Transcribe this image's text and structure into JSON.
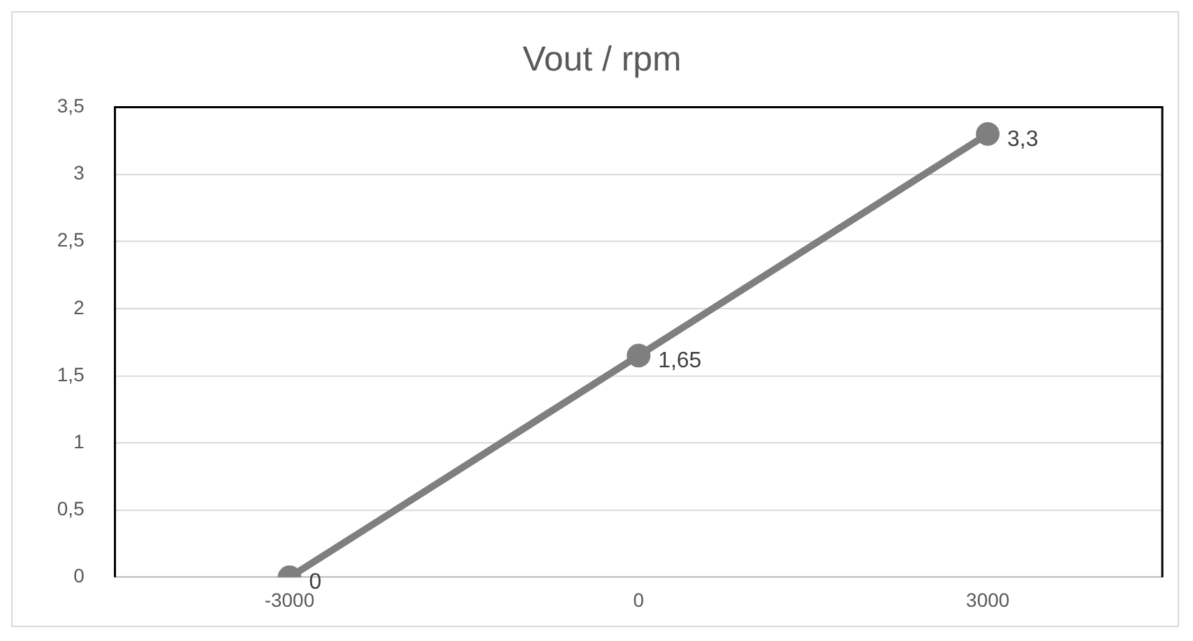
{
  "chart_data": {
    "type": "line",
    "title": "Vout / rpm",
    "categories": [
      "-3000",
      "0",
      "3000"
    ],
    "series": [
      {
        "color": "#7f7f7f",
        "values": [
          0,
          1.65,
          3.3
        ],
        "value_labels": [
          "0",
          "1,65",
          "3,3"
        ]
      }
    ],
    "ylim": [
      0,
      3.5
    ],
    "yticks": [
      0,
      {
        "value": 0.5,
        "label": "0,5"
      },
      1,
      {
        "value": 1.5,
        "label": "1,5"
      },
      2,
      {
        "value": 2.5,
        "label": "2,5"
      },
      3,
      {
        "value": 3.5,
        "label": "3,5"
      }
    ],
    "grid": "y",
    "legend": false,
    "marker": "circle",
    "line_style": "solid"
  }
}
